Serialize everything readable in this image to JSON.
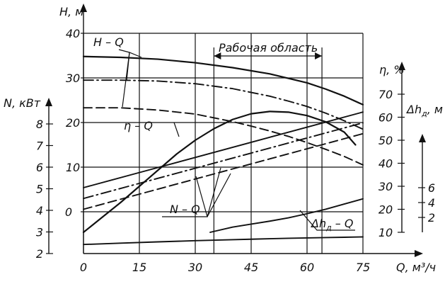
{
  "chart_data": {
    "type": "line",
    "x": {
      "label": "Q, м³/ч",
      "ticks": [
        0,
        15,
        30,
        45,
        60,
        75
      ],
      "range": [
        0,
        75
      ]
    },
    "axes": {
      "H": {
        "label": "H, м",
        "ticks": [
          0,
          10,
          20,
          30,
          40
        ],
        "range": [
          0,
          40
        ]
      },
      "N": {
        "label": "N, кВт",
        "ticks": [
          2,
          3,
          4,
          5,
          6,
          7,
          8
        ],
        "range": [
          2,
          8
        ]
      },
      "eta": {
        "label": "η, %",
        "ticks": [
          10,
          20,
          30,
          40,
          50,
          60,
          70
        ],
        "range": [
          10,
          70
        ]
      },
      "dh": {
        "label": "Δh",
        "label_sub": "д",
        "label_suffix": ", м",
        "ticks": [
          2,
          4,
          6
        ],
        "range": [
          0,
          8
        ]
      }
    },
    "working_zone": {
      "label": "Рабочая область",
      "from": 35,
      "to": 64
    },
    "annotations": {
      "hq": "H – Q",
      "etaq": "η – Q",
      "nq": "N – Q",
      "dhq": "Δh",
      "dhq_sub": "д",
      "dhq_suffix": " – Q"
    },
    "series": [
      {
        "id": "H1",
        "group": "H – Q",
        "axis": "H",
        "style": "solid",
        "x": [
          0,
          10,
          20,
          30,
          40,
          50,
          60,
          65,
          70,
          75
        ],
        "y": [
          34.8,
          34.6,
          34.2,
          33.4,
          32.3,
          30.9,
          28.9,
          27.5,
          25.9,
          24.0
        ]
      },
      {
        "id": "H2",
        "group": "H – Q",
        "axis": "H",
        "style": "dashdot",
        "x": [
          0,
          10,
          20,
          30,
          40,
          50,
          55,
          60,
          65,
          70,
          75
        ],
        "y": [
          29.5,
          29.5,
          29.3,
          28.7,
          27.6,
          25.9,
          24.8,
          23.6,
          22.1,
          20.4,
          18.5
        ]
      },
      {
        "id": "H3",
        "group": "H – Q",
        "axis": "H",
        "style": "dashed",
        "x": [
          0,
          10,
          20,
          30,
          40,
          45,
          50,
          55,
          60,
          65,
          70,
          75
        ],
        "y": [
          23.3,
          23.3,
          22.8,
          21.9,
          20.2,
          19.2,
          18.1,
          16.9,
          15.5,
          14.0,
          12.4,
          10.5
        ]
      },
      {
        "id": "eta1",
        "group": "η – Q",
        "axis": "eta",
        "style": "solid",
        "x": [
          0,
          5,
          10,
          15,
          20,
          25,
          30,
          35,
          40,
          45,
          50,
          55,
          60,
          65,
          70,
          73
        ],
        "y": [
          10,
          16.5,
          23,
          30,
          37,
          44,
          50,
          55,
          59,
          61.5,
          62.5,
          62.2,
          60.7,
          58,
          53.5,
          48
        ]
      },
      {
        "id": "eta2",
        "group": "η – Q",
        "axis": "eta",
        "style": "solid",
        "x": [
          0,
          10,
          20,
          30,
          40,
          45,
          50,
          55,
          60,
          65,
          70,
          75
        ],
        "y": [
          4.7,
          5.3,
          5.85,
          6.35,
          6.8,
          7.0,
          7.2,
          7.4,
          7.55,
          7.7,
          7.85,
          8.0
        ]
      },
      {
        "id": "N1",
        "group": "N – Q",
        "axis": "N",
        "style": "solid",
        "x": [
          0,
          15,
          30,
          45,
          60,
          75
        ],
        "y": [
          5.05,
          5.75,
          6.45,
          7.15,
          7.85,
          8.55
        ]
      },
      {
        "id": "N2",
        "group": "N – Q",
        "axis": "N",
        "style": "dashdot",
        "x": [
          0,
          15,
          30,
          45,
          60,
          75
        ],
        "y": [
          4.55,
          5.25,
          5.95,
          6.65,
          7.35,
          8.05
        ]
      },
      {
        "id": "N3",
        "group": "N – Q",
        "axis": "N",
        "style": "dashed",
        "x": [
          0,
          15,
          30,
          45,
          60,
          75
        ],
        "y": [
          4.05,
          4.75,
          5.45,
          6.15,
          6.85,
          7.55
        ]
      },
      {
        "id": "dh1",
        "group": "Δh_д – Q",
        "axis": "dh",
        "style": "solid",
        "x": [
          34,
          40,
          45,
          50,
          55,
          60,
          65,
          70,
          75
        ],
        "y": [
          0.0,
          0.7,
          1.1,
          1.5,
          1.95,
          2.5,
          3.1,
          3.8,
          4.5
        ]
      }
    ]
  }
}
